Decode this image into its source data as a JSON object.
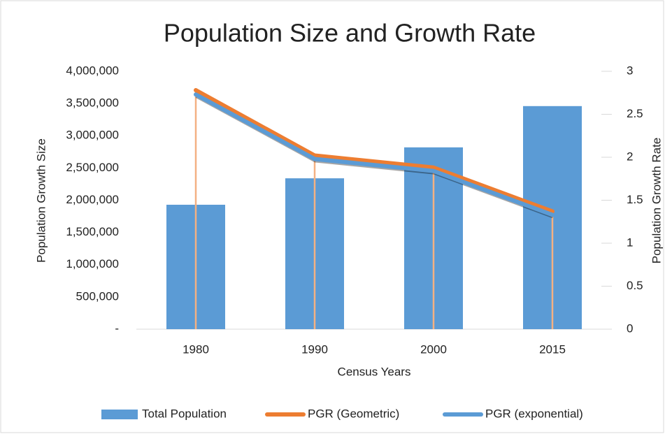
{
  "chart_data": {
    "type": "combo",
    "title": "Population Size and Growth Rate",
    "x_label": "Census Years",
    "y_label": "Population Growth Size",
    "y2_label": "Population Growth Rate",
    "categories": [
      "1980",
      "1990",
      "2000",
      "2015"
    ],
    "series": [
      {
        "name": "Total Population",
        "type": "bar",
        "axis": "y",
        "color": "#5b9bd5",
        "values": [
          1930000,
          2340000,
          2820000,
          3460000
        ]
      },
      {
        "name": "PGR (Geometric)",
        "type": "line",
        "axis": "y2",
        "color": "#ed7d31",
        "values": [
          2.78,
          2.02,
          1.88,
          1.37
        ]
      },
      {
        "name": "PGR (exponential)",
        "type": "line",
        "axis": "y2",
        "color": "#5b9bd5",
        "values": [
          2.73,
          1.98,
          1.84,
          1.33
        ]
      }
    ],
    "ylim": [
      0,
      4000000
    ],
    "yticks": [
      {
        "value": 0,
        "label": "-"
      },
      {
        "value": 500000,
        "label": "500,000"
      },
      {
        "value": 1000000,
        "label": "1,000,000"
      },
      {
        "value": 1500000,
        "label": "1,500,000"
      },
      {
        "value": 2000000,
        "label": "2,000,000"
      },
      {
        "value": 2500000,
        "label": "2,500,000"
      },
      {
        "value": 3000000,
        "label": "3,000,000"
      },
      {
        "value": 3500000,
        "label": "3,500,000"
      },
      {
        "value": 4000000,
        "label": "4,000,000"
      }
    ],
    "y2lim": [
      0,
      3
    ],
    "y2ticks": [
      0,
      0.5,
      1,
      1.5,
      2,
      2.5,
      3
    ],
    "legend": "bottom"
  }
}
